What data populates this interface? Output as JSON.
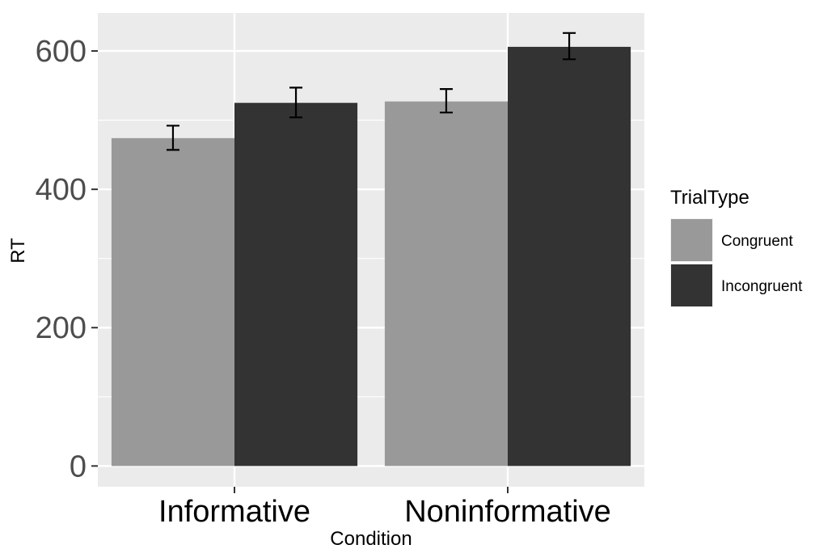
{
  "chart_data": {
    "type": "bar",
    "title": "",
    "xlabel": "Condition",
    "ylabel": "RT",
    "categories": [
      "Informative",
      "Noninformative"
    ],
    "series": [
      {
        "name": "Congruent",
        "values": [
          474,
          527
        ],
        "error_low": [
          457,
          511
        ],
        "error_high": [
          492,
          545
        ],
        "color": "#999999"
      },
      {
        "name": "Incongruent",
        "values": [
          525,
          606
        ],
        "error_low": [
          504,
          588
        ],
        "error_high": [
          547,
          626
        ],
        "color": "#333333"
      }
    ],
    "ylim": [
      -30,
      655
    ],
    "yticks": [
      0,
      200,
      400,
      600
    ],
    "ytick_labels": [
      "0",
      "200",
      "400",
      "600"
    ],
    "grid": true,
    "legend": {
      "title": "TrialType",
      "position": "right"
    },
    "panel_background": "#ebebeb",
    "grid_color": "#ffffff"
  }
}
